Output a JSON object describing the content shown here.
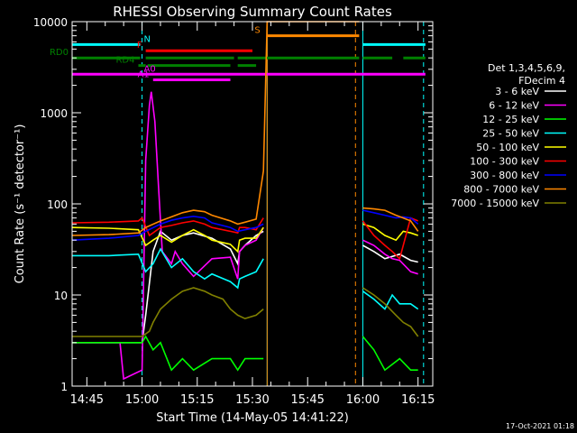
{
  "chart_data": {
    "type": "line",
    "title": "RHESSI Observing Summary Count Rates",
    "xlabel": "Start Time (14-May-05 14:41:22)",
    "ylabel": "Count Rate (s⁻¹ detector⁻¹)",
    "y_scale": "log",
    "ylim": [
      1,
      10000
    ],
    "xlim_minutes_after_1441": [
      0,
      98
    ],
    "x_tick_labels": [
      "14:45",
      "15:00",
      "15:15",
      "15:30",
      "15:45",
      "16:00",
      "16:15"
    ],
    "x_tick_minutes": [
      4,
      19,
      34,
      49,
      64,
      79,
      94
    ],
    "y_tick_labels": [
      "1",
      "10",
      "100",
      "1000",
      "10000"
    ],
    "y_tick_values": [
      1,
      10,
      100,
      1000,
      10000
    ],
    "legend": {
      "header": [
        "Det 1,3,4,5,6,9,",
        "FDecim 4"
      ],
      "placement": "right"
    },
    "series": [
      {
        "name": "3 - 6 keV",
        "color": "#ffffff",
        "segments": [
          [
            [
              0,
              3
            ],
            [
              19,
              3
            ],
            [
              20,
              6
            ],
            [
              22,
              30
            ],
            [
              24,
              50
            ],
            [
              27,
              40
            ],
            [
              30,
              45
            ],
            [
              33,
              48
            ],
            [
              38,
              42
            ],
            [
              43,
              32
            ],
            [
              45,
              22
            ],
            [
              45.5,
              30
            ],
            [
              47,
              35
            ],
            [
              50,
              45
            ],
            [
              52,
              50
            ]
          ],
          [
            [
              79,
              35
            ],
            [
              82,
              30
            ],
            [
              85,
              25
            ],
            [
              89,
              28
            ],
            [
              92,
              24
            ],
            [
              94,
              23
            ]
          ]
        ]
      },
      {
        "name": "6 - 12 keV",
        "color": "#ff00ff",
        "segments": [
          [
            [
              0,
              3
            ],
            [
              13,
              3
            ],
            [
              14,
              1.2
            ],
            [
              19,
              1.5
            ],
            [
              20,
              300
            ],
            [
              21,
              1200
            ],
            [
              21.5,
              1700
            ],
            [
              22.5,
              800
            ],
            [
              23.5,
              150
            ],
            [
              24.5,
              30
            ],
            [
              27,
              22
            ],
            [
              28,
              30
            ],
            [
              30,
              22
            ],
            [
              33,
              16
            ],
            [
              38,
              25
            ],
            [
              43,
              26
            ],
            [
              45,
              15
            ],
            [
              45.5,
              30
            ],
            [
              47,
              35
            ],
            [
              50,
              40
            ],
            [
              52,
              55
            ]
          ],
          [
            [
              79,
              40
            ],
            [
              82,
              35
            ],
            [
              85,
              28
            ],
            [
              87,
              25
            ],
            [
              89,
              24
            ],
            [
              92,
              18
            ],
            [
              94,
              17
            ]
          ]
        ]
      },
      {
        "name": "12 - 25 keV",
        "color": "#00ff00",
        "segments": [
          [
            [
              0,
              3
            ],
            [
              19,
              3
            ],
            [
              20,
              3.5
            ],
            [
              22,
              2.5
            ],
            [
              24,
              3
            ],
            [
              27,
              1.5
            ],
            [
              30,
              2
            ],
            [
              33,
              1.5
            ],
            [
              38,
              2
            ],
            [
              43,
              2
            ],
            [
              45,
              1.5
            ],
            [
              47,
              2
            ],
            [
              52,
              2
            ]
          ],
          [
            [
              79,
              3.5
            ],
            [
              82,
              2.5
            ],
            [
              85,
              1.5
            ],
            [
              89,
              2
            ],
            [
              92,
              1.5
            ],
            [
              94,
              1.5
            ]
          ]
        ]
      },
      {
        "name": "25 - 50 keV",
        "color": "#00ffff",
        "segments": [
          [
            [
              0,
              27
            ],
            [
              10,
              27
            ],
            [
              18,
              28
            ],
            [
              20,
              18
            ],
            [
              22,
              22
            ],
            [
              24,
              32
            ],
            [
              27,
              20
            ],
            [
              30,
              25
            ],
            [
              33,
              18
            ],
            [
              36,
              15
            ],
            [
              38,
              17
            ],
            [
              43,
              14
            ],
            [
              45,
              12
            ],
            [
              45.5,
              15
            ],
            [
              47,
              16
            ],
            [
              50,
              18
            ],
            [
              52,
              25
            ]
          ],
          [
            [
              79,
              11
            ],
            [
              82,
              9
            ],
            [
              85,
              7
            ],
            [
              87,
              10
            ],
            [
              89,
              8
            ],
            [
              92,
              8
            ],
            [
              94,
              7
            ]
          ]
        ]
      },
      {
        "name": "50 - 100 keV",
        "color": "#ffff00",
        "segments": [
          [
            [
              0,
              55
            ],
            [
              10,
              54
            ],
            [
              18,
              52
            ],
            [
              20,
              35
            ],
            [
              22,
              40
            ],
            [
              24,
              45
            ],
            [
              27,
              38
            ],
            [
              30,
              45
            ],
            [
              33,
              52
            ],
            [
              36,
              45
            ],
            [
              38,
              40
            ],
            [
              43,
              36
            ],
            [
              45,
              30
            ],
            [
              45.5,
              40
            ],
            [
              47,
              42
            ],
            [
              50,
              42
            ],
            [
              52,
              55
            ]
          ],
          [
            [
              79,
              60
            ],
            [
              82,
              55
            ],
            [
              85,
              45
            ],
            [
              88,
              40
            ],
            [
              90,
              50
            ],
            [
              92,
              48
            ],
            [
              94,
              45
            ]
          ]
        ]
      },
      {
        "name": "100 - 300 keV",
        "color": "#ff0000",
        "segments": [
          [
            [
              0,
              62
            ],
            [
              10,
              63
            ],
            [
              18,
              65
            ],
            [
              19,
              70
            ],
            [
              21,
              45
            ],
            [
              24,
              55
            ],
            [
              27,
              58
            ],
            [
              30,
              62
            ],
            [
              33,
              65
            ],
            [
              36,
              60
            ],
            [
              38,
              55
            ],
            [
              43,
              50
            ],
            [
              45,
              48
            ],
            [
              45.5,
              55
            ],
            [
              47,
              55
            ],
            [
              50,
              52
            ],
            [
              52,
              70
            ]
          ],
          [
            [
              79,
              65
            ],
            [
              82,
              45
            ],
            [
              85,
              35
            ],
            [
              87,
              30
            ],
            [
              89,
              25
            ],
            [
              92,
              70
            ],
            [
              94,
              65
            ]
          ]
        ]
      },
      {
        "name": "300 - 800 keV",
        "color": "#0000ff",
        "segments": [
          [
            [
              0,
              40
            ],
            [
              10,
              42
            ],
            [
              18,
              45
            ],
            [
              20,
              50
            ],
            [
              24,
              60
            ],
            [
              27,
              66
            ],
            [
              30,
              70
            ],
            [
              33,
              73
            ],
            [
              36,
              70
            ],
            [
              38,
              62
            ],
            [
              43,
              55
            ],
            [
              45,
              50
            ],
            [
              47,
              52
            ],
            [
              50,
              55
            ],
            [
              52,
              60
            ]
          ],
          [
            [
              79,
              85
            ],
            [
              82,
              80
            ],
            [
              85,
              75
            ],
            [
              88,
              70
            ],
            [
              90,
              72
            ],
            [
              92,
              70
            ],
            [
              94,
              60
            ]
          ]
        ]
      },
      {
        "name": "800 - 7000 keV",
        "color": "#ff8800",
        "segments": [
          [
            [
              0,
              45
            ],
            [
              10,
              46
            ],
            [
              18,
              48
            ],
            [
              20,
              55
            ],
            [
              24,
              65
            ],
            [
              27,
              72
            ],
            [
              30,
              80
            ],
            [
              33,
              85
            ],
            [
              36,
              82
            ],
            [
              38,
              75
            ],
            [
              43,
              65
            ],
            [
              45,
              60
            ],
            [
              47,
              63
            ],
            [
              50,
              68
            ],
            [
              52,
              230
            ],
            [
              53,
              10000
            ],
            [
              76,
              10000
            ],
            [
              78,
              10000
            ]
          ],
          [
            [
              79,
              90
            ],
            [
              82,
              88
            ],
            [
              85,
              85
            ],
            [
              88,
              75
            ],
            [
              90,
              70
            ],
            [
              92,
              65
            ],
            [
              94,
              50
            ]
          ]
        ]
      },
      {
        "name": "7000 - 15000 keV",
        "color": "#808000",
        "segments": [
          [
            [
              0,
              3.5
            ],
            [
              14,
              3.5
            ],
            [
              19,
              3.5
            ],
            [
              21,
              4
            ],
            [
              22,
              5
            ],
            [
              24,
              7
            ],
            [
              27,
              9
            ],
            [
              30,
              11
            ],
            [
              33,
              12
            ],
            [
              36,
              11
            ],
            [
              38,
              10
            ],
            [
              41,
              9
            ],
            [
              43,
              7
            ],
            [
              45,
              6
            ],
            [
              47,
              5.5
            ],
            [
              50,
              6
            ],
            [
              52,
              7
            ]
          ],
          [
            [
              79,
              12
            ],
            [
              82,
              10
            ],
            [
              85,
              8
            ],
            [
              88,
              6
            ],
            [
              90,
              5
            ],
            [
              92,
              4.5
            ],
            [
              94,
              3.5
            ]
          ]
        ]
      }
    ],
    "vertical_markers": [
      {
        "minute": 0,
        "color": "#00ffff",
        "style": "solid"
      },
      {
        "minute": 19,
        "color": "#00ffff",
        "style": "dashed"
      },
      {
        "minute": 53,
        "color": "#00ffff",
        "style": "solid"
      },
      {
        "minute": 53,
        "color": "#ff8800",
        "style": "solid"
      },
      {
        "minute": 77,
        "color": "#ff8800",
        "style": "dashed"
      },
      {
        "minute": 79,
        "color": "#00ffff",
        "style": "solid"
      },
      {
        "minute": 95.5,
        "color": "#00ffff",
        "style": "dashed"
      }
    ],
    "flag_bars": [
      {
        "label": "N",
        "color": "#00ffff",
        "y": 5600,
        "ranges": [
          [
            0,
            18.5
          ],
          [
            79,
            96
          ]
        ]
      },
      {
        "label": "S",
        "color": "#ff8800",
        "y": 7000,
        "ranges": [
          [
            53,
            78
          ]
        ]
      },
      {
        "label": "F",
        "color": "#ff0000",
        "y": 4800,
        "ranges": [
          [
            20,
            49
          ]
        ]
      },
      {
        "label": "RD0",
        "color": "#008000",
        "y": 4000,
        "ranges": [
          [
            0,
            18.5
          ],
          [
            20,
            44
          ],
          [
            45,
            78
          ],
          [
            79,
            87
          ],
          [
            90,
            96
          ]
        ]
      },
      {
        "label": "RD4",
        "color": "#008000",
        "y": 3300,
        "ranges": [
          [
            18,
            20
          ],
          [
            20.5,
            43
          ],
          [
            45,
            50
          ]
        ]
      },
      {
        "label": "A0",
        "color": "#ff00ff",
        "y": 2650,
        "ranges": [
          [
            0,
            96
          ]
        ]
      },
      {
        "label": "A1",
        "color": "#ff00ff",
        "y": 2300,
        "ranges": [
          [
            22,
            43
          ]
        ]
      }
    ]
  },
  "footer": {
    "timestamp": "17-Oct-2021 01:18"
  }
}
